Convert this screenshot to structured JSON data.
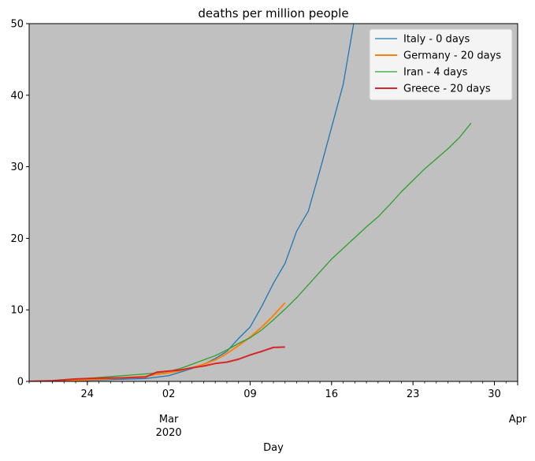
{
  "chart_data": {
    "type": "line",
    "title": "deaths per million people",
    "xlabel": "Day",
    "ylabel": "",
    "xlim": [
      "2020-02-19",
      "2020-04-01"
    ],
    "ylim": [
      0,
      50
    ],
    "grid": false,
    "plot_background": "#c0c0c0",
    "legend_position": "top-right",
    "y_ticks": [
      0,
      10,
      20,
      30,
      40,
      50
    ],
    "x_ticks": [
      {
        "date": "2020-02-24",
        "label": "24",
        "sublabel": ""
      },
      {
        "date": "2020-03-02",
        "label": "02",
        "sublabel": "Mar\n2020"
      },
      {
        "date": "2020-03-09",
        "label": "09",
        "sublabel": ""
      },
      {
        "date": "2020-03-16",
        "label": "16",
        "sublabel": ""
      },
      {
        "date": "2020-03-23",
        "label": "23",
        "sublabel": ""
      },
      {
        "date": "2020-03-30",
        "label": "30",
        "sublabel": ""
      },
      {
        "date": "2020-04-01",
        "label": "",
        "sublabel": "Apr"
      }
    ],
    "series": [
      {
        "name": "Italy - 0 days",
        "color": "#1f77b4",
        "points": [
          [
            "2020-02-19",
            0.0
          ],
          [
            "2020-02-21",
            0.05
          ],
          [
            "2020-02-23",
            0.1
          ],
          [
            "2020-02-25",
            0.2
          ],
          [
            "2020-02-27",
            0.3
          ],
          [
            "2020-02-29",
            0.4
          ],
          [
            "2020-03-01",
            0.6
          ],
          [
            "2020-03-02",
            0.8
          ],
          [
            "2020-03-03",
            1.3
          ],
          [
            "2020-03-04",
            1.8
          ],
          [
            "2020-03-05",
            2.4
          ],
          [
            "2020-03-06",
            3.2
          ],
          [
            "2020-03-07",
            4.2
          ],
          [
            "2020-03-08",
            6.0
          ],
          [
            "2020-03-09",
            7.6
          ],
          [
            "2020-03-10",
            10.5
          ],
          [
            "2020-03-11",
            13.7
          ],
          [
            "2020-03-12",
            16.5
          ],
          [
            "2020-03-13",
            21.0
          ],
          [
            "2020-03-14",
            23.8
          ],
          [
            "2020-03-15",
            29.5
          ],
          [
            "2020-03-16",
            35.5
          ],
          [
            "2020-03-17",
            41.5
          ],
          [
            "2020-03-17.9",
            50.0
          ]
        ]
      },
      {
        "name": "Germany - 20 days",
        "color": "#ff7f0e",
        "points": [
          [
            "2020-02-19",
            0.0
          ],
          [
            "2020-02-21",
            0.05
          ],
          [
            "2020-02-23",
            0.15
          ],
          [
            "2020-02-25",
            0.3
          ],
          [
            "2020-02-27",
            0.5
          ],
          [
            "2020-02-29",
            0.7
          ],
          [
            "2020-03-01",
            1.0
          ],
          [
            "2020-03-02",
            1.2
          ],
          [
            "2020-03-03",
            1.5
          ],
          [
            "2020-03-04",
            1.9
          ],
          [
            "2020-03-05",
            2.4
          ],
          [
            "2020-03-06",
            3.0
          ],
          [
            "2020-03-07",
            3.9
          ],
          [
            "2020-03-08",
            5.0
          ],
          [
            "2020-03-09",
            6.2
          ],
          [
            "2020-03-10",
            7.6
          ],
          [
            "2020-03-11",
            9.2
          ],
          [
            "2020-03-12",
            11.0
          ]
        ]
      },
      {
        "name": "Iran - 4 days",
        "color": "#2ca02c",
        "points": [
          [
            "2020-02-19",
            0.0
          ],
          [
            "2020-02-21",
            0.1
          ],
          [
            "2020-02-23",
            0.3
          ],
          [
            "2020-02-25",
            0.55
          ],
          [
            "2020-02-27",
            0.8
          ],
          [
            "2020-02-29",
            1.05
          ],
          [
            "2020-03-01",
            1.2
          ],
          [
            "2020-03-02",
            1.4
          ],
          [
            "2020-03-03",
            1.8
          ],
          [
            "2020-03-04",
            2.4
          ],
          [
            "2020-03-05",
            3.0
          ],
          [
            "2020-03-06",
            3.6
          ],
          [
            "2020-03-07",
            4.4
          ],
          [
            "2020-03-08",
            5.3
          ],
          [
            "2020-03-09",
            6.1
          ],
          [
            "2020-03-10",
            7.2
          ],
          [
            "2020-03-11",
            8.6
          ],
          [
            "2020-03-12",
            10.1
          ],
          [
            "2020-03-13",
            11.7
          ],
          [
            "2020-03-14",
            13.5
          ],
          [
            "2020-03-15",
            15.3
          ],
          [
            "2020-03-16",
            17.1
          ],
          [
            "2020-03-17",
            18.6
          ],
          [
            "2020-03-18",
            20.1
          ],
          [
            "2020-03-19",
            21.6
          ],
          [
            "2020-03-20",
            23.0
          ],
          [
            "2020-03-21",
            24.7
          ],
          [
            "2020-03-22",
            26.5
          ],
          [
            "2020-03-23",
            28.1
          ],
          [
            "2020-03-24",
            29.7
          ],
          [
            "2020-03-25",
            31.1
          ],
          [
            "2020-03-26",
            32.5
          ],
          [
            "2020-03-27",
            34.1
          ],
          [
            "2020-03-28",
            36.1
          ]
        ]
      },
      {
        "name": "Greece - 20 days",
        "color": "#d62728",
        "points": [
          [
            "2020-02-19",
            0.0
          ],
          [
            "2020-02-21",
            0.1
          ],
          [
            "2020-02-23",
            0.35
          ],
          [
            "2020-02-25",
            0.45
          ],
          [
            "2020-02-27",
            0.5
          ],
          [
            "2020-02-29",
            0.6
          ],
          [
            "2020-03-01",
            1.3
          ],
          [
            "2020-03-02",
            1.45
          ],
          [
            "2020-03-03",
            1.6
          ],
          [
            "2020-03-04",
            1.9
          ],
          [
            "2020-03-05",
            2.15
          ],
          [
            "2020-03-06",
            2.5
          ],
          [
            "2020-03-07",
            2.7
          ],
          [
            "2020-03-08",
            3.1
          ],
          [
            "2020-03-09",
            3.7
          ],
          [
            "2020-03-10",
            4.2
          ],
          [
            "2020-03-11",
            4.75
          ],
          [
            "2020-03-12",
            4.8
          ]
        ]
      }
    ]
  }
}
